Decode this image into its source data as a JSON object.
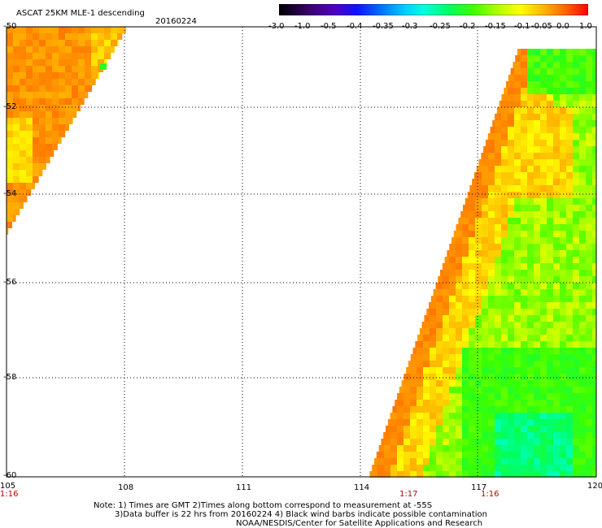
{
  "header": {
    "title": "ASCAT 25KM MLE-1 descending",
    "date": "20160224"
  },
  "colorbar": {
    "tick_labels": [
      "-3.0",
      "-1.0",
      "-0.5",
      "-0.4",
      "-0.35",
      "-0.3",
      "-0.25",
      "-0.2",
      "-0.15",
      "-0.1",
      "-0.05",
      "0.0",
      "1.0"
    ],
    "colors": [
      "#000000",
      "#5000a0",
      "#2000ff",
      "#0050ff",
      "#00a0ff",
      "#00ffff",
      "#00ffa0",
      "#00ff30",
      "#80ff00",
      "#ffff00",
      "#ffa000",
      "#ff6000",
      "#ff0000"
    ]
  },
  "map": {
    "lon_labels": [
      "105",
      "108",
      "111",
      "114",
      "117",
      "120"
    ],
    "lat_labels": [
      "-50",
      "-52",
      "-54",
      "-56",
      "-58",
      "-60"
    ],
    "time_labels": [
      "1:16",
      "1:17",
      "1:16"
    ]
  },
  "notes": {
    "line1": "Note: 1) Times are GMT 2)Times along bottom correspond to measurement at -55S",
    "line2": "3)Data buffer is 22 hrs from 20160224 4) Black wind barbs indicate possible contamination",
    "line3": "NOAA/NESDIS/Center for Satellite Applications and Research"
  }
}
